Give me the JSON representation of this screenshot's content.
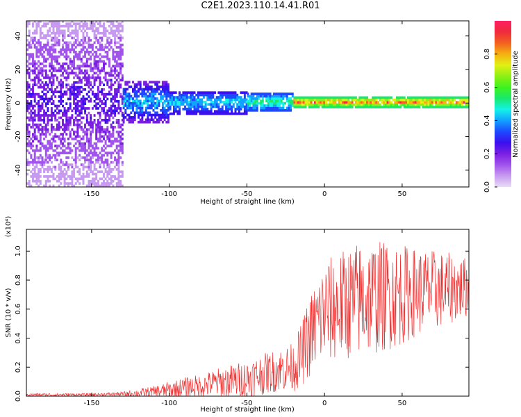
{
  "title": "C2E1.2023.110.14.41.R01",
  "colors": {
    "colormap": [
      "#e8dcf6",
      "#c79af0",
      "#a154ec",
      "#7a1fe2",
      "#3a10ee",
      "#1d49ff",
      "#12a2ff",
      "#15f2e8",
      "#18e86d",
      "#3ff21d",
      "#8ef015",
      "#e1f013",
      "#f6b012",
      "#f26120",
      "#ef2b3c",
      "#ff1f63"
    ],
    "snr_line": "#f03030"
  },
  "chart_data": [
    {
      "type": "heatmap",
      "name": "spectrogram",
      "xlabel": "Height of straight line (km)",
      "ylabel": "Frequency (Hz)",
      "xlim": [
        -192,
        93
      ],
      "ylim": [
        -50,
        49
      ],
      "xticks": [
        -150,
        -100,
        -50,
        0,
        50
      ],
      "yticks": [
        -40,
        -20,
        0,
        20,
        40
      ],
      "colorbar": {
        "label": "Normalized spectral amplitude",
        "range": [
          0,
          1
        ],
        "ticks": [
          "0.0",
          "0.2",
          "0.4",
          "0.6",
          "0.8"
        ]
      },
      "bands": [
        {
          "x_range": [
            -192,
            -130
          ],
          "f_center": 0,
          "f_halfwidth": 50,
          "amplitude": [
            0.05,
            0.3
          ],
          "coverage": 0.55
        },
        {
          "x_range": [
            -130,
            -100
          ],
          "f_center": 0,
          "f_halfwidth": 12,
          "amplitude": [
            0.2,
            0.5
          ],
          "coverage": 0.7
        },
        {
          "x_range": [
            -100,
            -50
          ],
          "f_center": 0,
          "f_halfwidth": 7,
          "amplitude": [
            0.25,
            0.5
          ],
          "coverage": 0.8
        },
        {
          "x_range": [
            -50,
            -20
          ],
          "f_center": 0,
          "f_halfwidth": 5,
          "amplitude": [
            0.3,
            0.6
          ],
          "coverage": 0.85
        },
        {
          "x_range": [
            -20,
            93
          ],
          "f_center": 0,
          "f_halfwidth": 3,
          "amplitude": [
            0.5,
            0.95
          ],
          "coverage": 0.95
        }
      ]
    },
    {
      "type": "line",
      "name": "snr",
      "xlabel": "Height of straight line (km)",
      "ylabel": "SNR (10 * v/v)",
      "y_scale_label": "(x10⁴)",
      "xlim": [
        -192,
        93
      ],
      "ylim": [
        0,
        1.15
      ],
      "xticks": [
        -150,
        -100,
        -50,
        0,
        50
      ],
      "yticks": [
        "0.0",
        "0.2",
        "0.4",
        "0.6",
        "0.8",
        "1.0"
      ],
      "envelope": {
        "x": [
          -192,
          -150,
          -130,
          -120,
          -110,
          -100,
          -90,
          -80,
          -70,
          -60,
          -50,
          -40,
          -30,
          -20,
          -15,
          -10,
          -5,
          0,
          10,
          20,
          30,
          40,
          50,
          60,
          70,
          80,
          93
        ],
        "mean": [
          0.01,
          0.01,
          0.015,
          0.02,
          0.03,
          0.04,
          0.06,
          0.07,
          0.09,
          0.1,
          0.12,
          0.15,
          0.18,
          0.2,
          0.28,
          0.4,
          0.5,
          0.58,
          0.62,
          0.66,
          0.68,
          0.69,
          0.7,
          0.72,
          0.73,
          0.74,
          0.75
        ],
        "spread": [
          0.01,
          0.01,
          0.015,
          0.03,
          0.04,
          0.06,
          0.07,
          0.08,
          0.1,
          0.12,
          0.13,
          0.14,
          0.15,
          0.17,
          0.22,
          0.28,
          0.32,
          0.36,
          0.38,
          0.4,
          0.4,
          0.38,
          0.35,
          0.3,
          0.28,
          0.25,
          0.2
        ]
      }
    }
  ]
}
